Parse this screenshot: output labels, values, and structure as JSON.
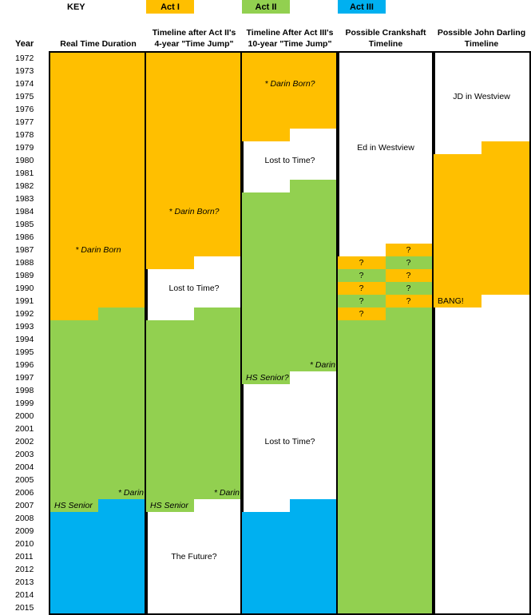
{
  "colors": {
    "act1": "#FFBF00",
    "act2": "#92D050",
    "act3": "#00B0F0",
    "blank": "#FFFFFF"
  },
  "key": {
    "label": "KEY",
    "items": [
      {
        "name": "Act I",
        "color": "act1"
      },
      {
        "name": "Act II",
        "color": "act2"
      },
      {
        "name": "Act III",
        "color": "act3"
      }
    ]
  },
  "chart_data": {
    "type": "table",
    "title": "",
    "row_header": "Year",
    "years": [
      1972,
      1973,
      1974,
      1975,
      1976,
      1977,
      1978,
      1979,
      1980,
      1981,
      1982,
      1983,
      1984,
      1985,
      1986,
      1987,
      1988,
      1989,
      1990,
      1991,
      1992,
      1993,
      1994,
      1995,
      1996,
      1997,
      1998,
      1999,
      2000,
      2001,
      2002,
      2003,
      2004,
      2005,
      2006,
      2007,
      2008,
      2009,
      2010,
      2011,
      2012,
      2013,
      2014,
      2015
    ],
    "columns": [
      {
        "title_lines": [
          "Real Time Duration"
        ],
        "cells": [
          {
            "from": 1972,
            "to": 1991,
            "half": "full",
            "act": "act1"
          },
          {
            "from": 1992,
            "to": 1992,
            "half": "left",
            "act": "act1"
          },
          {
            "from": 1992,
            "to": 1992,
            "half": "right",
            "act": "act2"
          },
          {
            "from": 1993,
            "to": 2006,
            "half": "full",
            "act": "act2"
          },
          {
            "from": 2007,
            "to": 2007,
            "half": "left",
            "act": "act2"
          },
          {
            "from": 2007,
            "to": 2015,
            "half": "right",
            "act": "act3"
          },
          {
            "from": 2008,
            "to": 2015,
            "half": "left",
            "act": "act3"
          }
        ],
        "annotations": [
          {
            "text": "* Darin Born",
            "year": 1987,
            "half": "center",
            "italic": true
          },
          {
            "text": "* Darin",
            "year": 2006,
            "half": "right",
            "italic": true
          },
          {
            "text": "HS Senior",
            "year": 2007,
            "half": "left",
            "italic": true
          }
        ]
      },
      {
        "title_lines": [
          "Timeline after Act II's",
          "4-year \"Time Jump\""
        ],
        "cells": [
          {
            "from": 1972,
            "to": 1987,
            "half": "full",
            "act": "act1"
          },
          {
            "from": 1988,
            "to": 1988,
            "half": "left",
            "act": "act1"
          },
          {
            "from": 1992,
            "to": 1992,
            "half": "right",
            "act": "act2"
          },
          {
            "from": 1993,
            "to": 2006,
            "half": "full",
            "act": "act2"
          },
          {
            "from": 2007,
            "to": 2007,
            "half": "left",
            "act": "act2"
          }
        ],
        "annotations": [
          {
            "text": "* Darin Born?",
            "year": 1984,
            "half": "center",
            "italic": true
          },
          {
            "text": "Lost to Time?",
            "year": 1990,
            "half": "center",
            "italic": false
          },
          {
            "text": "* Darin",
            "year": 2006,
            "half": "right",
            "italic": true
          },
          {
            "text": "HS Senior",
            "year": 2007,
            "half": "left",
            "italic": true
          },
          {
            "text": "The Future?",
            "year": 2011,
            "half": "center",
            "italic": false
          }
        ]
      },
      {
        "title_lines": [
          "Timeline After Act III's",
          "10-year \"Time Jump\""
        ],
        "cells": [
          {
            "from": 1972,
            "to": 1977,
            "half": "full",
            "act": "act1"
          },
          {
            "from": 1978,
            "to": 1978,
            "half": "left",
            "act": "act1"
          },
          {
            "from": 1982,
            "to": 1982,
            "half": "right",
            "act": "act2"
          },
          {
            "from": 1983,
            "to": 1996,
            "half": "full",
            "act": "act2"
          },
          {
            "from": 1997,
            "to": 1997,
            "half": "left",
            "act": "act2"
          },
          {
            "from": 2007,
            "to": 2015,
            "half": "right",
            "act": "act3"
          },
          {
            "from": 2008,
            "to": 2015,
            "half": "left",
            "act": "act3"
          }
        ],
        "annotations": [
          {
            "text": "* Darin Born?",
            "year": 1974,
            "half": "center",
            "italic": true
          },
          {
            "text": "Lost to Time?",
            "year": 1980,
            "half": "center",
            "italic": false
          },
          {
            "text": "* Darin",
            "year": 1996,
            "half": "right",
            "italic": true
          },
          {
            "text": "HS Senior?",
            "year": 1997,
            "half": "left",
            "italic": true
          },
          {
            "text": "Lost to Time?",
            "year": 2002,
            "half": "center",
            "italic": false
          }
        ]
      },
      {
        "title_lines": [
          "Possible Crankshaft",
          "Timeline"
        ],
        "cells": [
          {
            "from": 1987,
            "to": 1987,
            "half": "right",
            "act": "act1"
          },
          {
            "from": 1988,
            "to": 1988,
            "half": "left",
            "act": "act1"
          },
          {
            "from": 1988,
            "to": 1988,
            "half": "right",
            "act": "act2"
          },
          {
            "from": 1989,
            "to": 1989,
            "half": "left",
            "act": "act2"
          },
          {
            "from": 1989,
            "to": 1989,
            "half": "right",
            "act": "act1"
          },
          {
            "from": 1990,
            "to": 1990,
            "half": "left",
            "act": "act1"
          },
          {
            "from": 1990,
            "to": 1990,
            "half": "right",
            "act": "act2"
          },
          {
            "from": 1991,
            "to": 1991,
            "half": "left",
            "act": "act2"
          },
          {
            "from": 1991,
            "to": 1991,
            "half": "right",
            "act": "act1"
          },
          {
            "from": 1992,
            "to": 1992,
            "half": "left",
            "act": "act1"
          },
          {
            "from": 1992,
            "to": 1992,
            "half": "right",
            "act": "act2"
          },
          {
            "from": 1993,
            "to": 2015,
            "half": "full",
            "act": "act2"
          }
        ],
        "annotations": [
          {
            "text": "Ed in Westview",
            "year": 1979,
            "half": "center",
            "italic": false
          },
          {
            "text": "?",
            "year": 1987,
            "half": "right",
            "italic": false
          },
          {
            "text": "?",
            "year": 1988,
            "half": "left",
            "italic": false
          },
          {
            "text": "?",
            "year": 1988,
            "half": "right",
            "italic": false
          },
          {
            "text": "?",
            "year": 1989,
            "half": "left",
            "italic": false
          },
          {
            "text": "?",
            "year": 1989,
            "half": "right",
            "italic": false
          },
          {
            "text": "?",
            "year": 1990,
            "half": "left",
            "italic": false
          },
          {
            "text": "?",
            "year": 1990,
            "half": "right",
            "italic": false
          },
          {
            "text": "?",
            "year": 1991,
            "half": "left",
            "italic": false
          },
          {
            "text": "?",
            "year": 1991,
            "half": "right",
            "italic": false
          },
          {
            "text": "?",
            "year": 1992,
            "half": "left",
            "italic": false
          }
        ]
      },
      {
        "title_lines": [
          "Possible John Darling",
          "Timeline"
        ],
        "cells": [
          {
            "from": 1979,
            "to": 1979,
            "half": "right",
            "act": "act1"
          },
          {
            "from": 1980,
            "to": 1990,
            "half": "full",
            "act": "act1"
          },
          {
            "from": 1991,
            "to": 1991,
            "half": "left",
            "act": "act1"
          }
        ],
        "annotations": [
          {
            "text": "JD in Westview",
            "year": 1975,
            "half": "center",
            "italic": false
          },
          {
            "text": "BANG!",
            "year": 1991,
            "half": "left",
            "italic": false
          }
        ]
      }
    ]
  }
}
